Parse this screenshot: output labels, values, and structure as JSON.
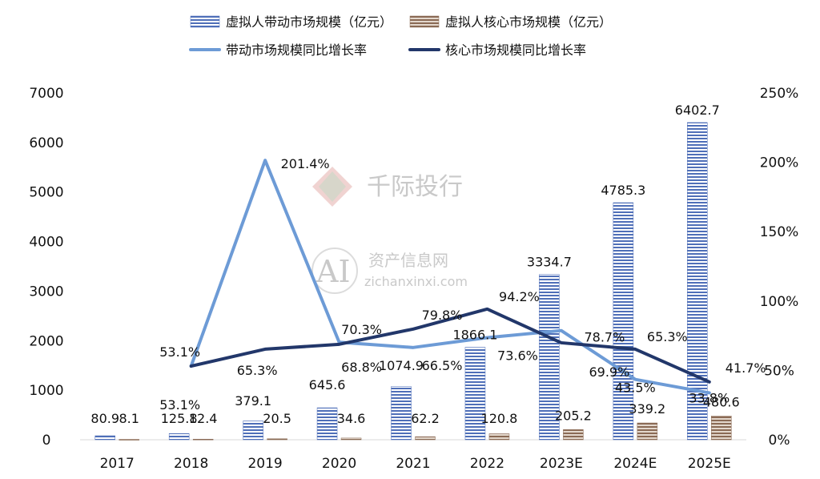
{
  "chart_data": {
    "type": "bar",
    "categories": [
      "2017",
      "2018",
      "2019",
      "2020",
      "2021",
      "2022",
      "2023E",
      "2024E",
      "2025E"
    ],
    "series": [
      {
        "name": "虚拟人带动市场规模（亿元）",
        "kind": "bar",
        "axis": "left",
        "color": "#4f6fb8",
        "values": [
          80.9,
          125.8,
          379.1,
          645.6,
          1074.9,
          1866.1,
          3334.7,
          4785.3,
          6402.7
        ],
        "labels": [
          "80.9",
          "125.8",
          "379.1",
          "645.6",
          "1074.9",
          "1866.1",
          "3334.7",
          "4785.3",
          "6402.7"
        ]
      },
      {
        "name": "虚拟人核心市场规模（亿元）",
        "kind": "bar",
        "axis": "left",
        "color": "#8a6a55",
        "values": [
          8.1,
          12.4,
          20.5,
          34.6,
          62.2,
          120.8,
          205.2,
          339.2,
          480.6
        ],
        "labels": [
          "8.1",
          "12.4",
          "20.5",
          "34.6",
          "62.2",
          "120.8",
          "205.2",
          "339.2",
          "480.6"
        ]
      },
      {
        "name": "带动市场规模同比增长率",
        "kind": "line",
        "axis": "right",
        "color": "#6d9bd6",
        "values": [
          null,
          53.1,
          201.4,
          70.3,
          66.5,
          73.6,
          78.7,
          43.5,
          33.8
        ],
        "labels": [
          "",
          "53.1%",
          "201.4%",
          "70.3%",
          "66.5%",
          "73.6%",
          "78.7%",
          "43.5%",
          "33.8%"
        ]
      },
      {
        "name": "核心市场规模同比增长率",
        "kind": "line",
        "axis": "right",
        "color": "#22376a",
        "values": [
          null,
          53.1,
          65.3,
          68.8,
          79.8,
          94.2,
          69.9,
          65.3,
          41.7
        ],
        "labels": [
          "",
          "53.1%",
          "65.3%",
          "68.8%",
          "79.8%",
          "94.2%",
          "69.9%",
          "65.3%",
          "41.7%"
        ]
      }
    ],
    "y_left": {
      "min": 0,
      "max": 7000,
      "ticks": [
        "0",
        "1000",
        "2000",
        "3000",
        "4000",
        "5000",
        "6000",
        "7000"
      ]
    },
    "y_right": {
      "min": 0,
      "max": 250,
      "ticks": [
        "0%",
        "50%",
        "100%",
        "150%",
        "200%",
        "250%"
      ]
    },
    "legend_position": "top",
    "grid": false
  },
  "watermarks": {
    "brand": "千际投行",
    "logo_text": "AI",
    "site_name": "资产信息网",
    "site_url": "zichanxinxi.com"
  }
}
